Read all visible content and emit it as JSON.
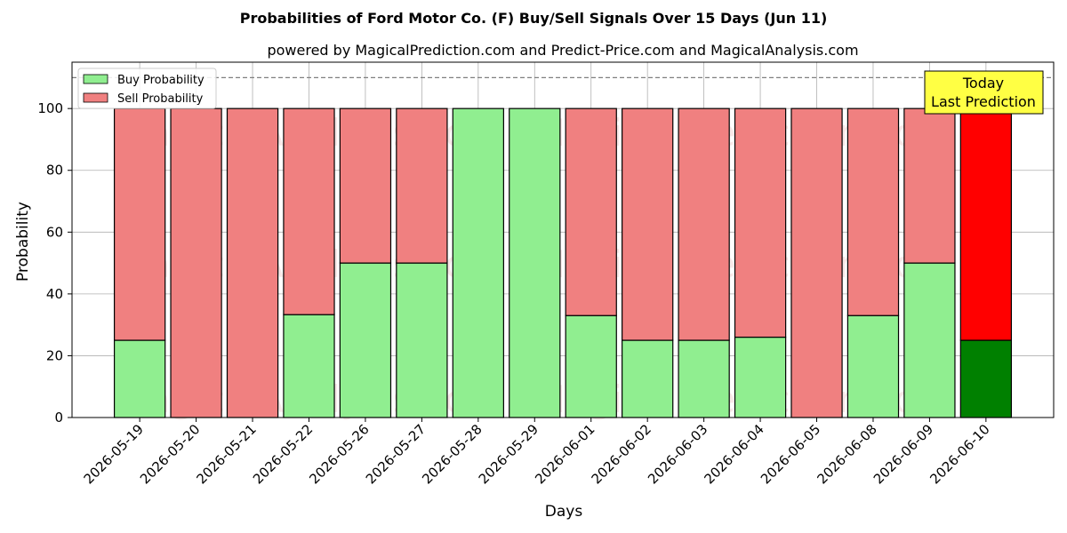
{
  "chart_data": {
    "type": "bar",
    "stacked": true,
    "title": "Probabilities of Ford Motor Co. (F) Buy/Sell Signals Over 15 Days (Jun 11)",
    "subtitle": "powered by MagicalPrediction.com and Predict-Price.com and MagicalAnalysis.com",
    "xlabel": "Days",
    "ylabel": "Probability",
    "ylim": [
      0,
      115
    ],
    "yticks": [
      0,
      20,
      40,
      60,
      80,
      100
    ],
    "grid": true,
    "legend_position": "top-left",
    "reference_line": 110,
    "categories": [
      "2026-05-19",
      "2026-05-20",
      "2026-05-21",
      "2026-05-22",
      "2026-05-26",
      "2026-05-27",
      "2026-05-28",
      "2026-05-29",
      "2026-06-01",
      "2026-06-02",
      "2026-06-03",
      "2026-06-04",
      "2026-06-05",
      "2026-06-08",
      "2026-06-09",
      "2026-06-10"
    ],
    "series": [
      {
        "name": "Buy Probability",
        "color": "#90ee90",
        "highlight_color": "#008000",
        "values": [
          25,
          0,
          0,
          33.3,
          50,
          50,
          100,
          100,
          33,
          25,
          25,
          26,
          0,
          33,
          50,
          25
        ]
      },
      {
        "name": "Sell Probability",
        "color": "#f08080",
        "highlight_color": "#ff0000",
        "values": [
          75,
          100,
          100,
          66.7,
          50,
          50,
          0,
          0,
          67,
          75,
          75,
          74,
          100,
          67,
          50,
          75
        ]
      }
    ],
    "highlight_index": 15,
    "annotation": {
      "line1": "Today",
      "line2": "Last Prediction",
      "color": "#ffff44"
    },
    "watermarks": [
      "MagicalAnalysis.com",
      "MagicalPrediction.com"
    ]
  }
}
